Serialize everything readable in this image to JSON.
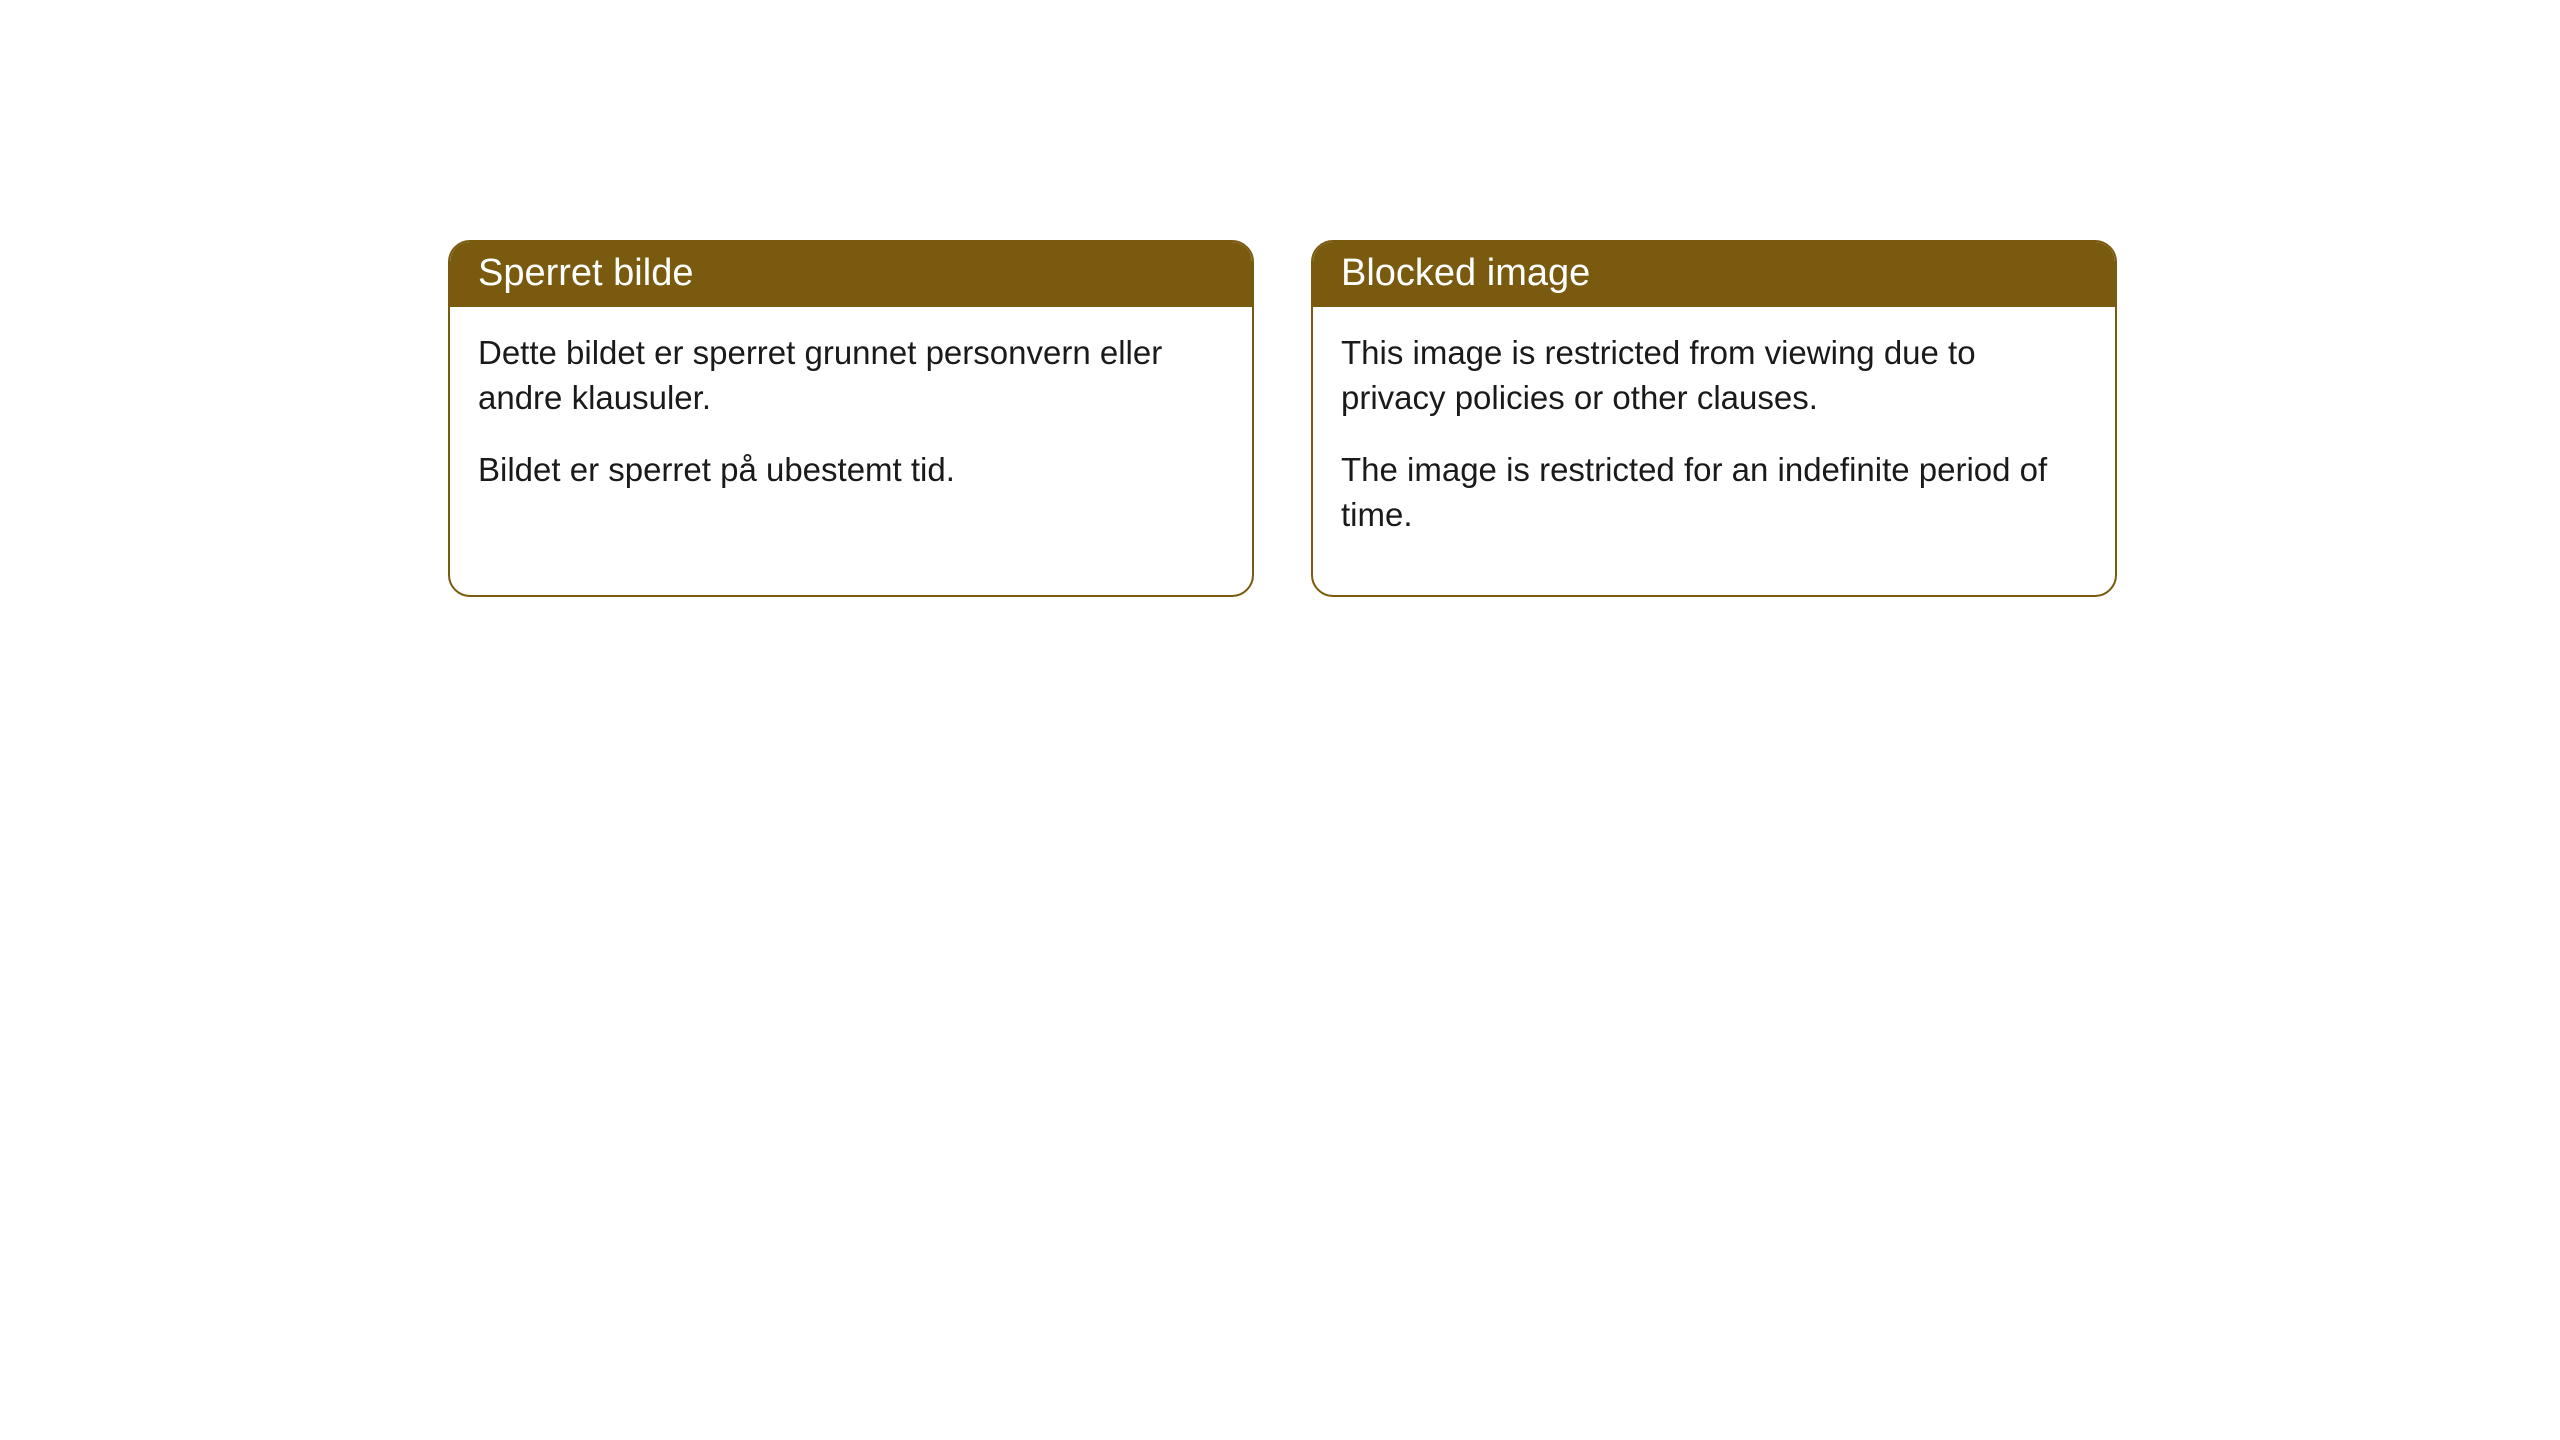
{
  "cards": [
    {
      "title": "Sperret bilde",
      "line1": "Dette bildet er sperret grunnet personvern eller andre klausuler.",
      "line2": "Bildet er sperret på ubestemt tid."
    },
    {
      "title": "Blocked image",
      "line1": "This image is restricted from viewing due to privacy policies or other clauses.",
      "line2": "The image is restricted for an indefinite period of time."
    }
  ],
  "colors": {
    "header_bg": "#795a0f",
    "header_text": "#ffffff",
    "border": "#795a0f",
    "body_bg": "#ffffff",
    "body_text": "#1a1a1a"
  }
}
